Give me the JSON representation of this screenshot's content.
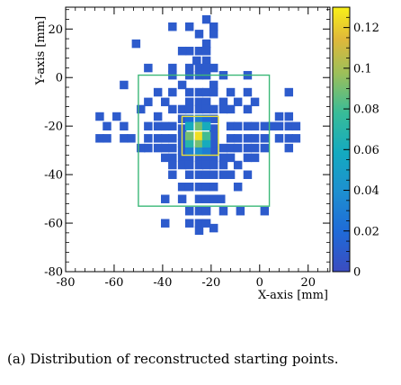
{
  "caption": "(a)  Distribution  of  reconstructed  starting points.",
  "chart_data": {
    "type": "heatmap",
    "xlabel": "X-axis [mm]",
    "ylabel": "Y-axis [mm]",
    "xlim": [
      -80,
      29
    ],
    "ylim": [
      -80,
      29
    ],
    "xticks": [
      -80,
      -60,
      -40,
      -20,
      0,
      20
    ],
    "yticks": [
      -80,
      -60,
      -40,
      -20,
      0,
      20
    ],
    "bin_size_mm": 3.4,
    "colorbar": {
      "range": [
        0,
        0.13
      ],
      "ticks": [
        0,
        0.02,
        0.04,
        0.06,
        0.08,
        0.1,
        0.12
      ],
      "tick_labels": [
        "0",
        "0.02",
        "0.04",
        "0.06",
        "0.08",
        "0.1",
        "0.12"
      ]
    },
    "boxes": [
      {
        "name": "outer",
        "x": [
          -50,
          4
        ],
        "y": [
          -53,
          1
        ],
        "color": "#3cb878"
      },
      {
        "name": "inner",
        "x": [
          -32,
          -17
        ],
        "y": [
          -32,
          -16
        ],
        "color": "#e8e13a"
      }
    ],
    "cells": [
      [
        -22,
        24,
        0.01
      ],
      [
        -36,
        21,
        0.01
      ],
      [
        -29,
        21,
        0.01
      ],
      [
        -19,
        21,
        0.01
      ],
      [
        -25,
        18,
        0.01
      ],
      [
        -19,
        18,
        0.01
      ],
      [
        -51,
        14,
        0.01
      ],
      [
        -22,
        14,
        0.01
      ],
      [
        -29,
        11,
        0.01
      ],
      [
        -25,
        11,
        0.01
      ],
      [
        -22,
        11,
        0.01
      ],
      [
        -32,
        11,
        0.01
      ],
      [
        -36,
        4,
        0.01
      ],
      [
        -22,
        7,
        0.01
      ],
      [
        -26,
        7,
        0.01
      ],
      [
        -46,
        4,
        0.01
      ],
      [
        -29,
        4,
        0.01
      ],
      [
        -25,
        4,
        0.01
      ],
      [
        -22,
        4,
        0.01
      ],
      [
        -19,
        4,
        0.01
      ],
      [
        -56,
        -3,
        0.01
      ],
      [
        -36,
        1,
        0.01
      ],
      [
        -32,
        -3,
        0.01
      ],
      [
        -29,
        1,
        0.01
      ],
      [
        -25,
        1,
        0.01
      ],
      [
        -22,
        1,
        0.01
      ],
      [
        -19,
        -3,
        0.01
      ],
      [
        -15,
        1,
        0.01
      ],
      [
        -5,
        1,
        0.01
      ],
      [
        -42,
        -6,
        0.01
      ],
      [
        -36,
        -6,
        0.01
      ],
      [
        -29,
        -6,
        0.01
      ],
      [
        -25,
        -6,
        0.01
      ],
      [
        -22,
        -6,
        0.01
      ],
      [
        -19,
        -6,
        0.01
      ],
      [
        -12,
        -6,
        0.01
      ],
      [
        -5,
        -6,
        0.01
      ],
      [
        12,
        -6,
        0.01
      ],
      [
        -46,
        -10,
        0.01
      ],
      [
        -39,
        -10,
        0.01
      ],
      [
        -29,
        -10,
        0.01
      ],
      [
        -25,
        -10,
        0.01
      ],
      [
        -22,
        -10,
        0.01
      ],
      [
        -15,
        -10,
        0.01
      ],
      [
        -9,
        -10,
        0.01
      ],
      [
        -2,
        -10,
        0.01
      ],
      [
        -66,
        -16,
        0.01
      ],
      [
        -59,
        -16,
        0.01
      ],
      [
        -49,
        -13,
        0.01
      ],
      [
        -42,
        -16,
        0.01
      ],
      [
        -36,
        -13,
        0.01
      ],
      [
        -32,
        -13,
        0.01
      ],
      [
        -29,
        -13,
        0.01
      ],
      [
        -25,
        -13,
        0.01
      ],
      [
        -22,
        -13,
        0.01
      ],
      [
        -19,
        -13,
        0.01
      ],
      [
        -15,
        -13,
        0.01
      ],
      [
        -12,
        -13,
        0.01
      ],
      [
        -5,
        -13,
        0.01
      ],
      [
        8,
        -16,
        0.01
      ],
      [
        12,
        -16,
        0.01
      ],
      [
        -63,
        -20,
        0.01
      ],
      [
        -56,
        -20,
        0.01
      ],
      [
        -46,
        -20,
        0.01
      ],
      [
        -42,
        -20,
        0.01
      ],
      [
        -39,
        -20,
        0.01
      ],
      [
        -36,
        -20,
        0.01
      ],
      [
        -12,
        -20,
        0.01
      ],
      [
        -9,
        -20,
        0.01
      ],
      [
        -5,
        -20,
        0.01
      ],
      [
        -2,
        -20,
        0.01
      ],
      [
        2,
        -20,
        0.01
      ],
      [
        5,
        -20,
        0.01
      ],
      [
        8,
        -20,
        0.01
      ],
      [
        12,
        -20,
        0.01
      ],
      [
        15,
        -20,
        0.01
      ],
      [
        -66,
        -25,
        0.01
      ],
      [
        -63,
        -25,
        0.01
      ],
      [
        -56,
        -25,
        0.01
      ],
      [
        -53,
        -25,
        0.01
      ],
      [
        -46,
        -25,
        0.01
      ],
      [
        -42,
        -25,
        0.01
      ],
      [
        -39,
        -25,
        0.01
      ],
      [
        -36,
        -25,
        0.01
      ],
      [
        -12,
        -25,
        0.01
      ],
      [
        -9,
        -25,
        0.01
      ],
      [
        -5,
        -25,
        0.01
      ],
      [
        -2,
        -25,
        0.01
      ],
      [
        2,
        -25,
        0.01
      ],
      [
        8,
        -25,
        0.01
      ],
      [
        12,
        -25,
        0.01
      ],
      [
        15,
        -25,
        0.01
      ],
      [
        -49,
        -29,
        0.01
      ],
      [
        -46,
        -29,
        0.01
      ],
      [
        -42,
        -29,
        0.01
      ],
      [
        -39,
        -29,
        0.01
      ],
      [
        -36,
        -29,
        0.01
      ],
      [
        -15,
        -29,
        0.01
      ],
      [
        -12,
        -29,
        0.01
      ],
      [
        -9,
        -29,
        0.01
      ],
      [
        -5,
        -29,
        0.01
      ],
      [
        -2,
        -29,
        0.01
      ],
      [
        2,
        -29,
        0.01
      ],
      [
        12,
        -29,
        0.01
      ],
      [
        -39,
        -33,
        0.01
      ],
      [
        -36,
        -33,
        0.01
      ],
      [
        -32,
        -33,
        0.01
      ],
      [
        -29,
        -33,
        0.01
      ],
      [
        -25,
        -33,
        0.01
      ],
      [
        -22,
        -33,
        0.01
      ],
      [
        -19,
        -33,
        0.01
      ],
      [
        -15,
        -33,
        0.01
      ],
      [
        -12,
        -33,
        0.01
      ],
      [
        -5,
        -33,
        0.01
      ],
      [
        -2,
        -33,
        0.01
      ],
      [
        -36,
        -36,
        0.01
      ],
      [
        -32,
        -36,
        0.01
      ],
      [
        -29,
        -36,
        0.01
      ],
      [
        -25,
        -36,
        0.01
      ],
      [
        -22,
        -36,
        0.01
      ],
      [
        -19,
        -36,
        0.01
      ],
      [
        -15,
        -36,
        0.01
      ],
      [
        -9,
        -36,
        0.01
      ],
      [
        -36,
        -40,
        0.01
      ],
      [
        -29,
        -40,
        0.01
      ],
      [
        -25,
        -40,
        0.01
      ],
      [
        -22,
        -40,
        0.01
      ],
      [
        -19,
        -40,
        0.01
      ],
      [
        -15,
        -40,
        0.01
      ],
      [
        -12,
        -40,
        0.01
      ],
      [
        -5,
        -40,
        0.01
      ],
      [
        -32,
        -45,
        0.01
      ],
      [
        -29,
        -45,
        0.01
      ],
      [
        -25,
        -45,
        0.01
      ],
      [
        -22,
        -45,
        0.01
      ],
      [
        -19,
        -45,
        0.01
      ],
      [
        -9,
        -45,
        0.01
      ],
      [
        -39,
        -50,
        0.01
      ],
      [
        -32,
        -50,
        0.01
      ],
      [
        -25,
        -50,
        0.01
      ],
      [
        -22,
        -50,
        0.01
      ],
      [
        -19,
        -50,
        0.01
      ],
      [
        -16,
        -50,
        0.01
      ],
      [
        -29,
        -55,
        0.01
      ],
      [
        -25,
        -55,
        0.01
      ],
      [
        -22,
        -55,
        0.01
      ],
      [
        -15,
        -55,
        0.01
      ],
      [
        -8,
        -55,
        0.01
      ],
      [
        2,
        -55,
        0.01
      ],
      [
        -39,
        -60,
        0.01
      ],
      [
        -29,
        -60,
        0.01
      ],
      [
        -25,
        -60,
        0.01
      ],
      [
        -22,
        -60,
        0.01
      ],
      [
        -19,
        -62,
        0.01
      ],
      [
        -25,
        -63,
        0.01
      ],
      [
        -32,
        -30,
        0.01
      ],
      [
        -32,
        -27,
        0.01
      ],
      [
        -32,
        -24,
        0.01
      ],
      [
        -32,
        -21,
        0.01
      ],
      [
        -32,
        -17,
        0.01
      ],
      [
        -19,
        -30,
        0.01
      ],
      [
        -19,
        -27,
        0.01
      ],
      [
        -19,
        -24,
        0.01
      ],
      [
        -19,
        -21,
        0.01
      ],
      [
        -19,
        -17,
        0.01
      ],
      [
        -29,
        -17,
        0.02
      ],
      [
        -25,
        -17,
        0.03
      ],
      [
        -22,
        -17,
        0.02
      ],
      [
        -29,
        -30,
        0.03
      ],
      [
        -25,
        -30,
        0.04
      ],
      [
        -22,
        -30,
        0.03
      ],
      [
        -29,
        -20,
        0.06
      ],
      [
        -25,
        -20,
        0.09
      ],
      [
        -22,
        -20,
        0.06
      ],
      [
        -29,
        -27,
        0.07
      ],
      [
        -25,
        -27,
        0.09
      ],
      [
        -22,
        -27,
        0.06
      ],
      [
        -29,
        -24,
        0.09
      ],
      [
        -25,
        -24,
        0.125
      ],
      [
        -22,
        -24,
        0.08
      ]
    ]
  }
}
